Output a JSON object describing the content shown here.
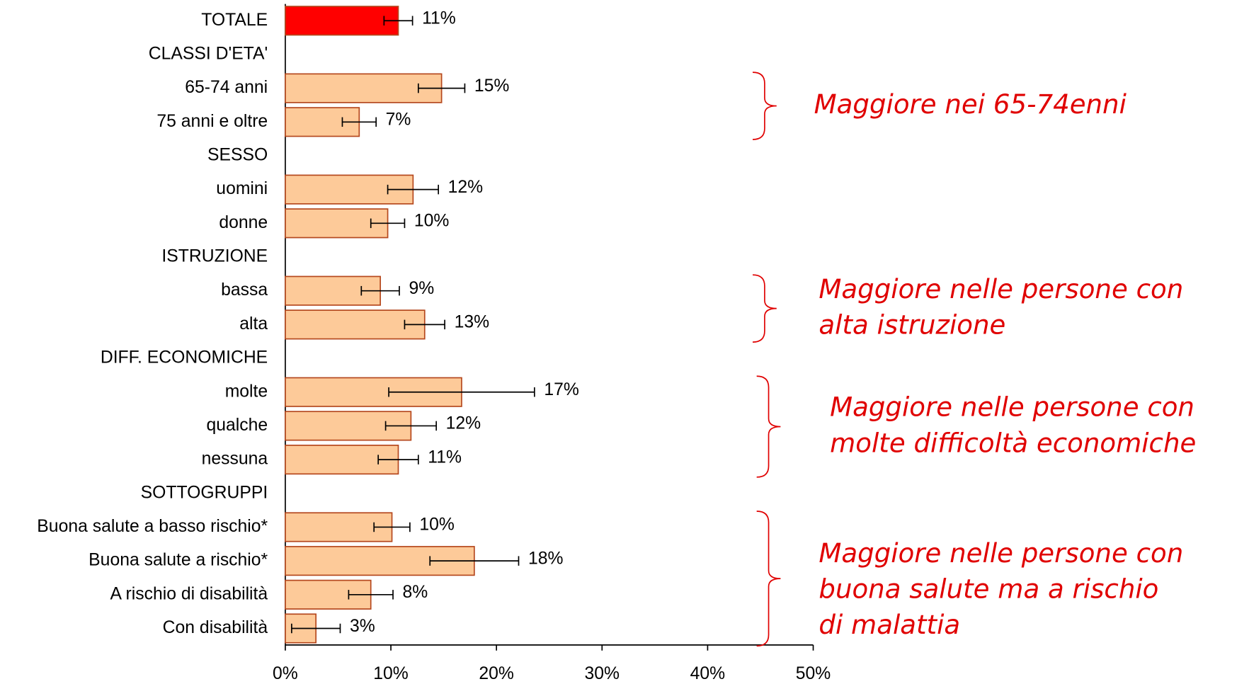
{
  "chart_data": {
    "type": "bar",
    "orientation": "horizontal",
    "categories": [
      "TOTALE",
      "CLASSI D'ETA'",
      "65-74 anni",
      "75 anni e oltre",
      "SESSO",
      "uomini",
      "donne",
      "ISTRUZIONE",
      "bassa",
      "alta",
      "DIFF. ECONOMICHE",
      "molte",
      "qualche",
      "nessuna",
      "SOTTOGRUPPI",
      "Buona salute a basso rischio*",
      "Buona salute a rischio*",
      "A rischio di disabilità",
      "Con disabilità"
    ],
    "values": [
      10.7,
      null,
      14.8,
      7.0,
      null,
      12.1,
      9.7,
      null,
      9.0,
      13.2,
      null,
      16.7,
      11.9,
      10.7,
      null,
      10.1,
      17.9,
      8.1,
      2.9
    ],
    "value_labels": [
      "11%",
      null,
      "15%",
      "7%",
      null,
      "12%",
      "10%",
      null,
      "9%",
      "13%",
      null,
      "17%",
      "12%",
      "11%",
      null,
      "10%",
      "18%",
      "8%",
      "3%"
    ],
    "errors": [
      1.35,
      null,
      2.2,
      1.6,
      null,
      2.4,
      1.6,
      null,
      1.8,
      1.9,
      null,
      6.9,
      2.4,
      1.9,
      null,
      1.7,
      4.2,
      2.1,
      2.3
    ],
    "colors": [
      "#ff0000",
      null,
      "#fdca99",
      "#fdca99",
      null,
      "#fdca99",
      "#fdca99",
      null,
      "#fdca99",
      "#fdca99",
      null,
      "#fdca99",
      "#fdca99",
      "#fdca99",
      null,
      "#fdca99",
      "#fdca99",
      "#fdca99",
      "#fdca99"
    ],
    "bar_edge_color": "#b5481e",
    "xlim": [
      0,
      50
    ],
    "xticks": [
      {
        "value": 0,
        "label": "0%"
      },
      {
        "value": 10,
        "label": "10%"
      },
      {
        "value": 20,
        "label": "20%"
      },
      {
        "value": 30,
        "label": "30%"
      },
      {
        "value": 40,
        "label": "40%"
      },
      {
        "value": 50,
        "label": "50%"
      }
    ],
    "grid": false,
    "annotations": [
      {
        "lines": [
          "Maggiore nei 65-74enni"
        ],
        "from": 2,
        "to": 3
      },
      {
        "lines": [
          "Maggiore nelle persone con",
          "alta istruzione"
        ],
        "from": 8,
        "to": 9
      },
      {
        "lines": [
          "Maggiore nelle persone con",
          "molte difficoltà economiche"
        ],
        "from": 11,
        "to": 13
      },
      {
        "lines": [
          "Maggiore nelle persone con",
          "buona salute ma a rischio",
          "di malattia"
        ],
        "from": 15,
        "to": 18
      }
    ],
    "annotation_color": "#e00000"
  }
}
